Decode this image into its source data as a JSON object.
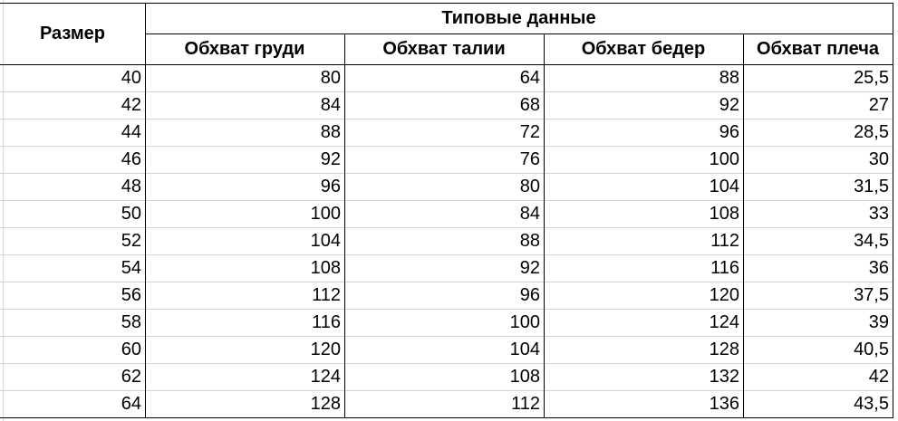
{
  "header": {
    "size": "Размер",
    "group": "Типовые данные",
    "columns": [
      "Обхват груди",
      "Обхват талии",
      "Обхват бедер",
      "Обхват плеча"
    ]
  },
  "rows": [
    [
      "40",
      "80",
      "64",
      "88",
      "25,5"
    ],
    [
      "42",
      "84",
      "68",
      "92",
      "27"
    ],
    [
      "44",
      "88",
      "72",
      "96",
      "28,5"
    ],
    [
      "46",
      "92",
      "76",
      "100",
      "30"
    ],
    [
      "48",
      "96",
      "80",
      "104",
      "31,5"
    ],
    [
      "50",
      "100",
      "84",
      "108",
      "33"
    ],
    [
      "52",
      "104",
      "88",
      "112",
      "34,5"
    ],
    [
      "54",
      "108",
      "92",
      "116",
      "36"
    ],
    [
      "56",
      "112",
      "96",
      "120",
      "37,5"
    ],
    [
      "58",
      "116",
      "100",
      "124",
      "39"
    ],
    [
      "60",
      "120",
      "104",
      "128",
      "40,5"
    ],
    [
      "62",
      "124",
      "108",
      "132",
      "42"
    ],
    [
      "64",
      "128",
      "112",
      "136",
      "43,5"
    ]
  ]
}
